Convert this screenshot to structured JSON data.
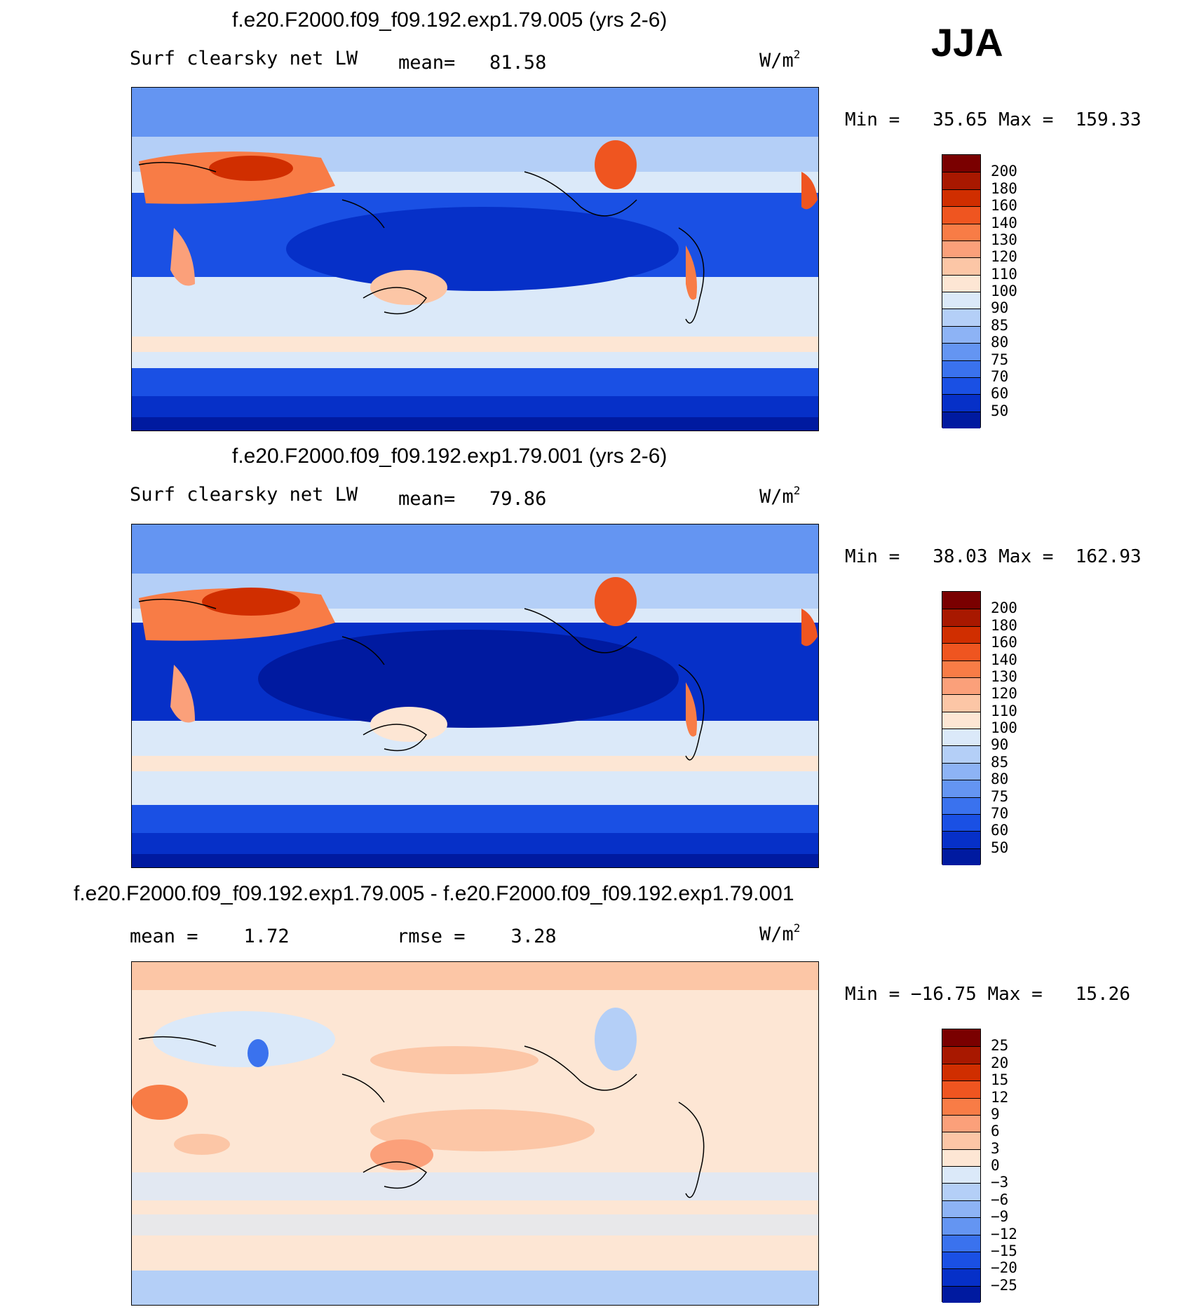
{
  "season": "JJA",
  "panels": [
    {
      "title": "f.e20.F2000.f09_f09.192.exp1.79.005 (yrs 2-6)",
      "variable": "Surf clearsky net LW",
      "stat1": "mean=   81.58",
      "stat2": "",
      "unit": "W/m",
      "unit_sup": "2",
      "minmax": "Min =   35.65 Max =  159.33",
      "colorbar": {
        "labels": [
          "200",
          "180",
          "160",
          "140",
          "130",
          "120",
          "110",
          "100",
          "90",
          "85",
          "80",
          "75",
          "70",
          "60",
          "50"
        ],
        "colors": [
          "#7a0000",
          "#a81800",
          "#d02e00",
          "#ef5520",
          "#f87c46",
          "#fba07a",
          "#fcc6a6",
          "#fde6d4",
          "#dbe9f9",
          "#b4cff7",
          "#8db3f5",
          "#6495f2",
          "#3a72ee",
          "#1a50e4",
          "#0630c8",
          "#001aa0"
        ]
      }
    },
    {
      "title": "f.e20.F2000.f09_f09.192.exp1.79.001 (yrs 2-6)",
      "variable": "Surf clearsky net LW",
      "stat1": "mean=   79.86",
      "stat2": "",
      "unit": "W/m",
      "unit_sup": "2",
      "minmax": "Min =   38.03 Max =  162.93",
      "colorbar": {
        "labels": [
          "200",
          "180",
          "160",
          "140",
          "130",
          "120",
          "110",
          "100",
          "90",
          "85",
          "80",
          "75",
          "70",
          "60",
          "50"
        ],
        "colors": [
          "#7a0000",
          "#a81800",
          "#d02e00",
          "#ef5520",
          "#f87c46",
          "#fba07a",
          "#fcc6a6",
          "#fde6d4",
          "#dbe9f9",
          "#b4cff7",
          "#8db3f5",
          "#6495f2",
          "#3a72ee",
          "#1a50e4",
          "#0630c8",
          "#001aa0"
        ]
      }
    },
    {
      "title": "f.e20.F2000.f09_f09.192.exp1.79.005 - f.e20.F2000.f09_f09.192.exp1.79.001",
      "variable": "",
      "stat1": "mean =    1.72",
      "stat2": "rmse =    3.28",
      "unit": "W/m",
      "unit_sup": "2",
      "minmax": "Min = −16.75 Max =   15.26",
      "colorbar": {
        "labels": [
          "25",
          "20",
          "15",
          "12",
          "9",
          "6",
          "3",
          "0",
          "−3",
          "−6",
          "−9",
          "−12",
          "−15",
          "−20",
          "−25"
        ],
        "colors": [
          "#7a0000",
          "#a81800",
          "#d02e00",
          "#ef5520",
          "#f87c46",
          "#fba07a",
          "#fcc6a6",
          "#fde6d4",
          "#dbe9f9",
          "#b4cff7",
          "#8db3f5",
          "#6495f2",
          "#3a72ee",
          "#1a50e4",
          "#0630c8",
          "#001aa0"
        ]
      }
    }
  ]
}
